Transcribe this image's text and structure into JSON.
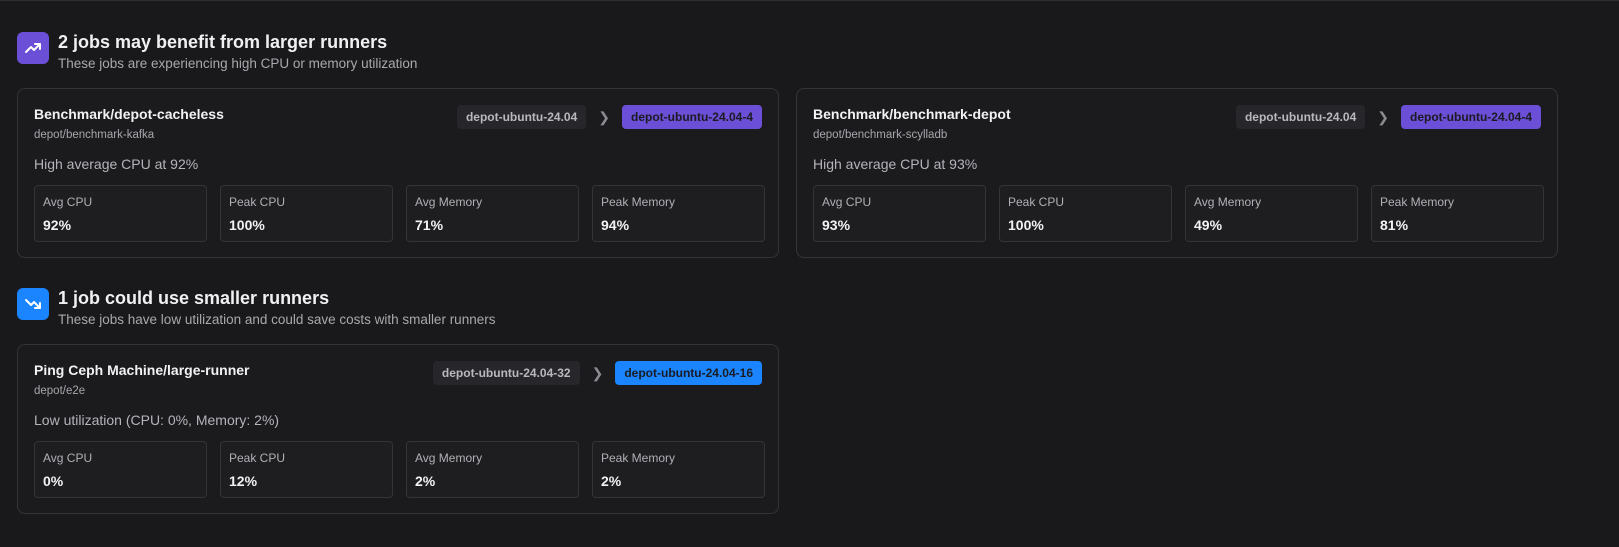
{
  "colors": {
    "larger": "#6b4fd6",
    "smaller": "#1a85ff"
  },
  "sections": [
    {
      "icon": "trending-up-icon",
      "title": "2 jobs may benefit from larger runners",
      "subtitle": "These jobs are experiencing high CPU or memory utilization",
      "cards": [
        {
          "job": "Benchmark/depot-cacheless",
          "repo": "depot/benchmark-kafka",
          "from": "depot-ubuntu-24.04",
          "to": "depot-ubuntu-24.04-4",
          "reason": "High average CPU at 92%",
          "metrics": [
            {
              "label": "Avg CPU",
              "value": "92%"
            },
            {
              "label": "Peak CPU",
              "value": "100%"
            },
            {
              "label": "Avg Memory",
              "value": "71%"
            },
            {
              "label": "Peak Memory",
              "value": "94%"
            }
          ]
        },
        {
          "job": "Benchmark/benchmark-depot",
          "repo": "depot/benchmark-scylladb",
          "from": "depot-ubuntu-24.04",
          "to": "depot-ubuntu-24.04-4",
          "reason": "High average CPU at 93%",
          "metrics": [
            {
              "label": "Avg CPU",
              "value": "93%"
            },
            {
              "label": "Peak CPU",
              "value": "100%"
            },
            {
              "label": "Avg Memory",
              "value": "49%"
            },
            {
              "label": "Peak Memory",
              "value": "81%"
            }
          ]
        }
      ]
    },
    {
      "icon": "trending-down-icon",
      "title": "1 job could use smaller runners",
      "subtitle": "These jobs have low utilization and could save costs with smaller runners",
      "cards": [
        {
          "job": "Ping Ceph Machine/large-runner",
          "repo": "depot/e2e",
          "from": "depot-ubuntu-24.04-32",
          "to": "depot-ubuntu-24.04-16",
          "reason": "Low utilization (CPU: 0%, Memory: 2%)",
          "metrics": [
            {
              "label": "Avg CPU",
              "value": "0%"
            },
            {
              "label": "Peak CPU",
              "value": "12%"
            },
            {
              "label": "Avg Memory",
              "value": "2%"
            },
            {
              "label": "Peak Memory",
              "value": "2%"
            }
          ]
        }
      ]
    }
  ]
}
